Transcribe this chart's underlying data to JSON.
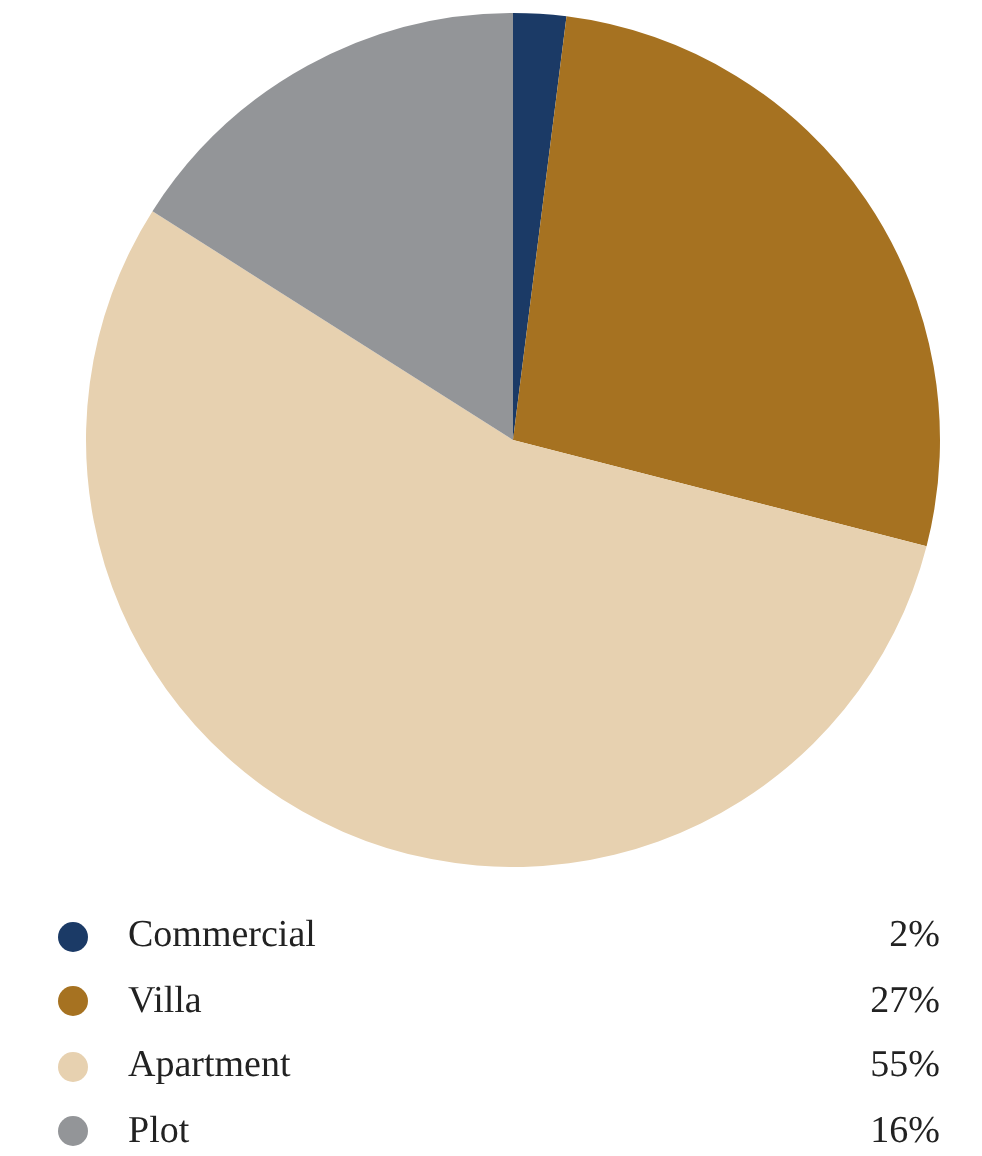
{
  "chart_data": {
    "type": "pie",
    "categories": [
      "Commercial",
      "Villa",
      "Apartment",
      "Plot"
    ],
    "values": [
      2,
      27,
      55,
      16
    ],
    "colors": [
      "#1b3a66",
      "#a67221",
      "#e7d1b0",
      "#939598"
    ],
    "value_labels": [
      "2%",
      "27%",
      "55%",
      "16%"
    ],
    "legend": "bottom"
  }
}
